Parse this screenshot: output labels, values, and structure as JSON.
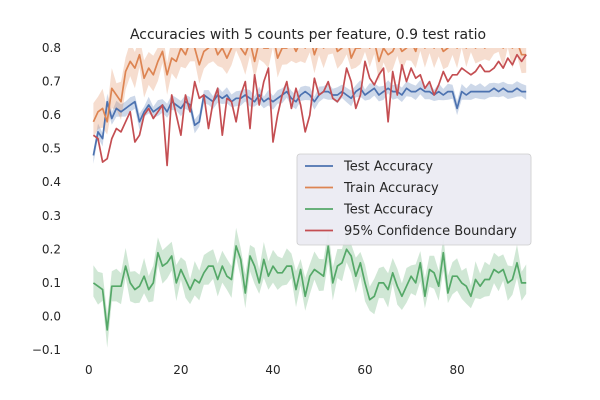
{
  "chart_data": {
    "type": "line",
    "title": "Accuracies with 5 counts per feature, 0.9 test ratio",
    "xlabel": "",
    "ylabel": "",
    "xlim": [
      -3,
      98
    ],
    "ylim": [
      -0.1,
      0.8
    ],
    "xticks": [
      0,
      20,
      40,
      60,
      80
    ],
    "yticks": [
      -0.1,
      0.0,
      0.1,
      0.2,
      0.3,
      0.4,
      0.5,
      0.6,
      0.7,
      0.8
    ],
    "grid": false,
    "legend_position": "center-right",
    "x": [
      1,
      2,
      3,
      4,
      5,
      6,
      7,
      8,
      9,
      10,
      11,
      12,
      13,
      14,
      15,
      16,
      17,
      18,
      19,
      20,
      21,
      22,
      23,
      24,
      25,
      26,
      27,
      28,
      29,
      30,
      31,
      32,
      33,
      34,
      35,
      36,
      37,
      38,
      39,
      40,
      41,
      42,
      43,
      44,
      45,
      46,
      47,
      48,
      49,
      50,
      51,
      52,
      53,
      54,
      55,
      56,
      57,
      58,
      59,
      60,
      61,
      62,
      63,
      64,
      65,
      66,
      67,
      68,
      69,
      70,
      71,
      72,
      73,
      74,
      75,
      76,
      77,
      78,
      79,
      80,
      81,
      82,
      83,
      84,
      85,
      86,
      87,
      88,
      89,
      90,
      91,
      92,
      93,
      94,
      95
    ],
    "series": [
      {
        "name": "Test Accuracy",
        "color": "#4c72b0",
        "values": [
          0.48,
          0.55,
          0.53,
          0.64,
          0.59,
          0.62,
          0.61,
          0.62,
          0.63,
          0.64,
          0.58,
          0.61,
          0.63,
          0.61,
          0.62,
          0.63,
          0.61,
          0.64,
          0.63,
          0.62,
          0.64,
          0.63,
          0.57,
          0.58,
          0.66,
          0.65,
          0.64,
          0.66,
          0.65,
          0.66,
          0.64,
          0.65,
          0.65,
          0.66,
          0.65,
          0.64,
          0.66,
          0.64,
          0.65,
          0.64,
          0.65,
          0.66,
          0.67,
          0.65,
          0.64,
          0.66,
          0.67,
          0.66,
          0.64,
          0.66,
          0.67,
          0.67,
          0.66,
          0.66,
          0.67,
          0.66,
          0.65,
          0.67,
          0.68,
          0.66,
          0.67,
          0.68,
          0.66,
          0.67,
          0.68,
          0.67,
          0.67,
          0.66,
          0.68,
          0.67,
          0.67,
          0.68,
          0.67,
          0.67,
          0.66,
          0.67,
          0.66,
          0.67,
          0.67,
          0.62,
          0.67,
          0.66,
          0.67,
          0.67,
          0.67,
          0.67,
          0.67,
          0.68,
          0.67,
          0.68,
          0.67,
          0.67,
          0.68,
          0.67,
          0.67
        ]
      },
      {
        "name": "Train Accuracy",
        "color": "#dd8452",
        "values": [
          0.58,
          0.61,
          0.62,
          0.58,
          0.68,
          0.66,
          0.64,
          0.73,
          0.76,
          0.74,
          0.78,
          0.71,
          0.74,
          0.72,
          0.76,
          0.79,
          0.72,
          0.77,
          0.76,
          0.8,
          0.78,
          0.82,
          0.8,
          0.75,
          0.79,
          0.8,
          0.82,
          0.78,
          0.8,
          0.77,
          0.8,
          0.85,
          0.8,
          0.78,
          0.82,
          0.76,
          0.82,
          0.8,
          0.8,
          0.84,
          0.77,
          0.8,
          0.8,
          0.82,
          0.79,
          0.82,
          0.8,
          0.84,
          0.78,
          0.82,
          0.8,
          0.82,
          0.84,
          0.79,
          0.8,
          0.84,
          0.77,
          0.8,
          0.8,
          0.84,
          0.8,
          0.82,
          0.76,
          0.8,
          0.78,
          0.79,
          0.82,
          0.79,
          0.8,
          0.82,
          0.79,
          0.84,
          0.8,
          0.82,
          0.8,
          0.82,
          0.79,
          0.8,
          0.82,
          0.8,
          0.84,
          0.8,
          0.84,
          0.8,
          0.82,
          0.8,
          0.82,
          0.83,
          0.84,
          0.8,
          0.84,
          0.8,
          0.82,
          0.78,
          0.78
        ]
      },
      {
        "name": "Test Accuracy",
        "color": "#55a868",
        "values": [
          0.1,
          0.09,
          0.08,
          -0.04,
          0.09,
          0.09,
          0.09,
          0.15,
          0.1,
          0.08,
          0.09,
          0.12,
          0.08,
          0.1,
          0.19,
          0.15,
          0.16,
          0.18,
          0.1,
          0.14,
          0.11,
          0.08,
          0.11,
          0.1,
          0.13,
          0.15,
          0.15,
          0.11,
          0.15,
          0.12,
          0.11,
          0.21,
          0.17,
          0.07,
          0.18,
          0.15,
          0.1,
          0.17,
          0.12,
          0.15,
          0.13,
          0.13,
          0.15,
          0.15,
          0.08,
          0.14,
          0.06,
          0.12,
          0.14,
          0.13,
          0.12,
          0.21,
          0.1,
          0.15,
          0.16,
          0.2,
          0.18,
          0.12,
          0.16,
          0.1,
          0.05,
          0.06,
          0.1,
          0.1,
          0.08,
          0.13,
          0.09,
          0.06,
          0.09,
          0.12,
          0.1,
          0.16,
          0.06,
          0.14,
          0.13,
          0.09,
          0.19,
          0.07,
          0.12,
          0.12,
          0.1,
          0.09,
          0.06,
          0.11,
          0.09,
          0.11,
          0.11,
          0.14,
          0.13,
          0.14,
          0.1,
          0.11,
          0.16,
          0.1,
          0.1
        ]
      },
      {
        "name": "95% Confidence Boundary",
        "color": "#c44e52",
        "values": [
          0.54,
          0.53,
          0.46,
          0.47,
          0.53,
          0.56,
          0.55,
          0.58,
          0.61,
          0.52,
          0.54,
          0.6,
          0.62,
          0.59,
          0.61,
          0.63,
          0.45,
          0.66,
          0.6,
          0.54,
          0.66,
          0.61,
          0.7,
          0.65,
          0.66,
          0.56,
          0.64,
          0.68,
          0.54,
          0.65,
          0.64,
          0.58,
          0.66,
          0.7,
          0.56,
          0.72,
          0.63,
          0.7,
          0.74,
          0.52,
          0.6,
          0.66,
          0.7,
          0.62,
          0.68,
          0.63,
          0.55,
          0.6,
          0.71,
          0.66,
          0.67,
          0.7,
          0.65,
          0.64,
          0.66,
          0.74,
          0.7,
          0.62,
          0.66,
          0.76,
          0.71,
          0.69,
          0.72,
          0.74,
          0.58,
          0.73,
          0.66,
          0.75,
          0.7,
          0.74,
          0.71,
          0.72,
          0.68,
          0.7,
          0.66,
          0.69,
          0.73,
          0.7,
          0.72,
          0.72,
          0.74,
          0.73,
          0.72,
          0.73,
          0.75,
          0.73,
          0.73,
          0.74,
          0.76,
          0.74,
          0.77,
          0.75,
          0.78,
          0.76,
          0.78
        ]
      }
    ],
    "bands": [
      {
        "series_index": 0,
        "color": "#4c72b0",
        "spread": 0.025
      },
      {
        "series_index": 1,
        "color": "#dd8452",
        "spread": 0.06
      },
      {
        "series_index": 2,
        "color": "#55a868",
        "spread": 0.055
      }
    ]
  }
}
